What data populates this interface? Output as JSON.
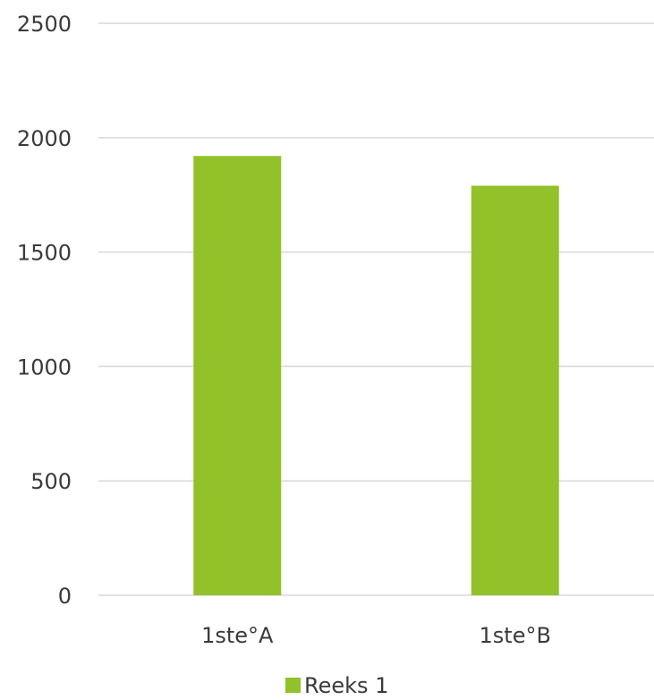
{
  "chart_data": {
    "type": "bar",
    "categories": [
      "1ste°A",
      "1ste°B"
    ],
    "series": [
      {
        "name": "Reeks 1",
        "values": [
          1920,
          1790
        ],
        "color": "#92c12a"
      }
    ],
    "title": "",
    "xlabel": "",
    "ylabel": "",
    "ylim": [
      0,
      2500
    ],
    "yticks": [
      "0",
      "500",
      "1000",
      "1500",
      "2000",
      "2500"
    ],
    "grid": true,
    "legend_position": "bottom",
    "gridline_color": "#d9d9d9"
  }
}
